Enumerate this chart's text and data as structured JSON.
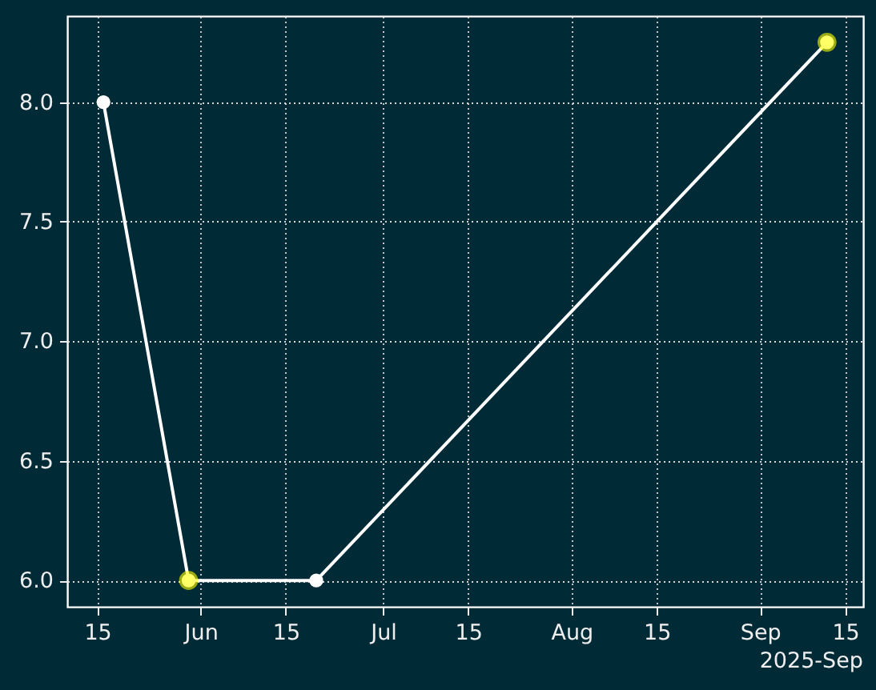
{
  "chart_data": {
    "type": "line",
    "x": [
      "2025-05-16",
      "2025-05-30",
      "2025-06-20",
      "2025-09-12"
    ],
    "series": [
      {
        "color": "#ffffff",
        "values": [
          8.0,
          6.0,
          6.0,
          8.25
        ]
      },
      {
        "type": "scatter",
        "color": "#ffff00",
        "x": [
          "2025-05-30",
          "2025-09-12"
        ],
        "values": [
          6.0,
          8.25
        ]
      }
    ],
    "marker": "circle",
    "line_style": "solid",
    "grid": true,
    "xlim": [
      "2025-05-10T01:12",
      "2025-09-17T22:48"
    ],
    "xticks": [
      {
        "value": "2025-05-15",
        "label": "15"
      },
      {
        "value": "2025-06-01",
        "label": "Jun"
      },
      {
        "value": "2025-06-15",
        "label": "15"
      },
      {
        "value": "2025-07-01",
        "label": "Jul"
      },
      {
        "value": "2025-07-15",
        "label": "15"
      },
      {
        "value": "2025-08-01",
        "label": "Aug"
      },
      {
        "value": "2025-08-15",
        "label": "15"
      },
      {
        "value": "2025-09-01",
        "label": "Sep"
      },
      {
        "value": "2025-09-15",
        "label": "15"
      }
    ],
    "ylim": [
      5.89,
      8.36
    ],
    "yticks": [
      {
        "value": 6,
        "label": "6.0"
      },
      {
        "value": 6.5,
        "label": "6.5"
      },
      {
        "value": 7,
        "label": "7.0"
      },
      {
        "value": 7.5,
        "label": "7.5"
      },
      {
        "value": 8,
        "label": "8.0"
      }
    ],
    "annotations": [
      "2025-Sep"
    ]
  }
}
